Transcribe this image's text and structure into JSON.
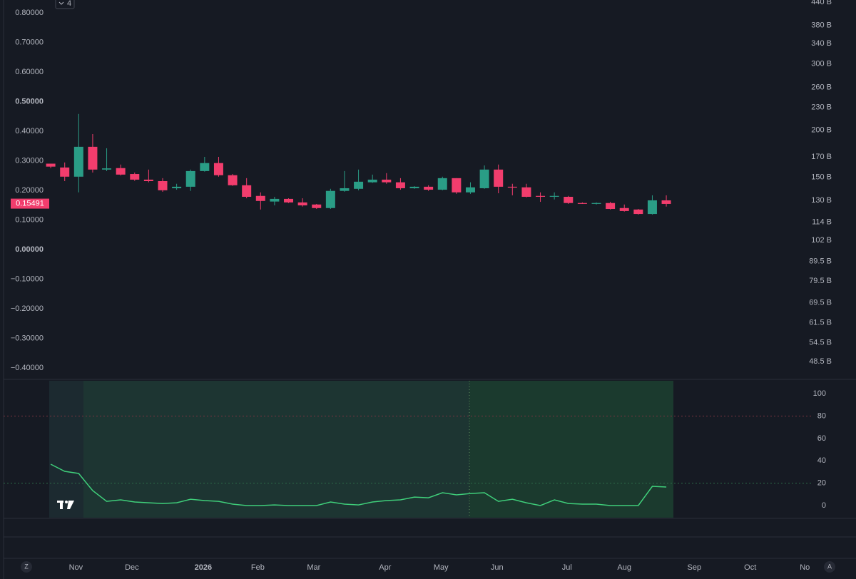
{
  "chart_data": [
    {
      "type": "candlestick",
      "categories": [
        null,
        null,
        null,
        null,
        null,
        null,
        null,
        null,
        null,
        null,
        null,
        null,
        null,
        null,
        null,
        null,
        null,
        null,
        null,
        null,
        null,
        null,
        null,
        null,
        null,
        null,
        null,
        null,
        null,
        null,
        null,
        null,
        null,
        null,
        null,
        null,
        null,
        null,
        null,
        null,
        null,
        null,
        null,
        null,
        null
      ],
      "open": [
        0.29,
        0.277,
        0.246,
        0.347,
        0.27,
        0.275,
        0.255,
        0.236,
        0.231,
        0.207,
        0.212,
        0.265,
        0.292,
        0.251,
        0.217,
        0.181,
        0.162,
        0.171,
        0.159,
        0.152,
        0.14,
        0.198,
        0.205,
        0.227,
        0.236,
        0.227,
        0.207,
        0.212,
        0.202,
        0.241,
        0.193,
        0.207,
        0.27,
        0.212,
        0.21,
        0.181,
        0.179,
        0.178,
        0.157,
        0.155,
        0.157,
        0.14,
        0.135,
        0.12,
        0.166
      ],
      "high": [
        0.29,
        0.294,
        0.458,
        0.39,
        0.342,
        0.287,
        0.26,
        0.27,
        0.241,
        0.222,
        0.27,
        0.313,
        0.313,
        0.255,
        0.241,
        0.193,
        0.178,
        0.173,
        0.173,
        0.154,
        0.205,
        0.265,
        0.27,
        0.253,
        0.258,
        0.241,
        0.214,
        0.217,
        0.246,
        0.241,
        0.227,
        0.284,
        0.287,
        0.222,
        0.222,
        0.193,
        0.193,
        0.181,
        0.159,
        0.159,
        0.161,
        0.152,
        0.137,
        0.183,
        0.183
      ],
      "low": [
        0.275,
        0.231,
        0.193,
        0.26,
        0.265,
        0.25,
        0.232,
        0.227,
        0.195,
        0.202,
        0.198,
        0.263,
        0.246,
        0.215,
        0.173,
        0.135,
        0.149,
        0.157,
        0.145,
        0.137,
        0.137,
        0.195,
        0.2,
        0.225,
        0.222,
        0.202,
        0.205,
        0.198,
        0.2,
        0.188,
        0.188,
        0.205,
        0.19,
        0.183,
        0.176,
        0.161,
        0.169,
        0.154,
        0.154,
        0.152,
        0.135,
        0.128,
        0.118,
        0.118,
        0.145
      ],
      "close": [
        0.28,
        0.246,
        0.347,
        0.27,
        0.274,
        0.253,
        0.236,
        0.231,
        0.2,
        0.212,
        0.265,
        0.292,
        0.251,
        0.217,
        0.178,
        0.164,
        0.171,
        0.159,
        0.149,
        0.14,
        0.198,
        0.207,
        0.229,
        0.236,
        0.227,
        0.207,
        0.212,
        0.202,
        0.241,
        0.193,
        0.21,
        0.27,
        0.212,
        0.21,
        0.178,
        0.179,
        0.181,
        0.157,
        0.155,
        0.157,
        0.137,
        0.13,
        0.12,
        0.166,
        0.154
      ],
      "up_color": "#2a9d86",
      "down_color": "#f23d6d",
      "last_price": 0.15491,
      "xlim": [
        -3.37,
        54.5
      ],
      "xticks": [
        {
          "value": 1.8,
          "label": "Nov"
        },
        {
          "value": 5.8,
          "label": "Dec"
        },
        {
          "value": 10.9,
          "label": "2026"
        },
        {
          "value": 14.8,
          "label": "Feb"
        },
        {
          "value": 18.8,
          "label": "Mar"
        },
        {
          "value": 23.9,
          "label": "Apr"
        },
        {
          "value": 27.9,
          "label": "May"
        },
        {
          "value": 31.9,
          "label": "Jun"
        },
        {
          "value": 36.9,
          "label": "Jul"
        },
        {
          "value": 41,
          "label": "Aug"
        },
        {
          "value": 46,
          "label": "Sep"
        },
        {
          "value": 50,
          "label": "Oct"
        },
        {
          "value": 53.9,
          "label": "No"
        }
      ],
      "ylim": [
        -0.434,
        0.843
      ],
      "yticks": [
        {
          "value": 0.8,
          "label": "0.80000"
        },
        {
          "value": 0.7,
          "label": "0.70000"
        },
        {
          "value": 0.6,
          "label": "0.60000"
        },
        {
          "value": 0.5,
          "label": "0.50000"
        },
        {
          "value": 0.4,
          "label": "0.40000"
        },
        {
          "value": 0.3,
          "label": "0.30000"
        },
        {
          "value": 0.2,
          "label": "0.20000"
        },
        {
          "value": 0.1,
          "label": "0.10000"
        },
        {
          "value": 0,
          "label": "0.00000"
        },
        {
          "value": -0.1,
          "label": "−0.10000"
        },
        {
          "value": -0.2,
          "label": "−0.20000"
        },
        {
          "value": -0.3,
          "label": "−0.30000"
        },
        {
          "value": -0.4,
          "label": "−0.40000"
        }
      ],
      "y2_log": true,
      "y2lim": [
        43.9,
        444
      ],
      "y2ticks": [
        {
          "value": 440,
          "label": "440 B"
        },
        {
          "value": 380,
          "label": "380 B"
        },
        {
          "value": 340,
          "label": "340 B"
        },
        {
          "value": 300,
          "label": "300 B"
        },
        {
          "value": 260,
          "label": "260 B"
        },
        {
          "value": 230,
          "label": "230 B"
        },
        {
          "value": 200,
          "label": "200 B"
        },
        {
          "value": 170,
          "label": "170 B"
        },
        {
          "value": 150,
          "label": "150 B"
        },
        {
          "value": 130,
          "label": "130 B"
        },
        {
          "value": 114,
          "label": "114 B"
        },
        {
          "value": 102,
          "label": "102 B"
        },
        {
          "value": 89.5,
          "label": "89.5 B"
        },
        {
          "value": 79.5,
          "label": "79.5 B"
        },
        {
          "value": 69.5,
          "label": "69.5 B"
        },
        {
          "value": 61.5,
          "label": "61.5 B"
        },
        {
          "value": 54.5,
          "label": "54.5 B"
        },
        {
          "value": 48.5,
          "label": "48.5 B"
        }
      ]
    },
    {
      "type": "line",
      "values": [
        37,
        30.6,
        28.7,
        13.4,
        3.8,
        5.1,
        3.2,
        2.5,
        1.9,
        2.5,
        5.7,
        4.5,
        3.8,
        1.3,
        0,
        0,
        0.6,
        0,
        0,
        0,
        3.2,
        1.3,
        0.6,
        3.2,
        4.5,
        5.1,
        7.6,
        7,
        11.5,
        9.6,
        10.8,
        11.5,
        3.8,
        5.7,
        2.5,
        0,
        5.1,
        1.9,
        1.3,
        1.3,
        0,
        0,
        0,
        17.2,
        16.6
      ],
      "color": "#3fce7a",
      "ylim": [
        -10.8,
        111.5
      ],
      "yticks": [
        0,
        20,
        40,
        60,
        80,
        100
      ],
      "levels": [
        80,
        20
      ],
      "level_colors": [
        "#7a3340",
        "#2e6b4a"
      ]
    }
  ],
  "ui": {
    "badge": "4",
    "buttons": [
      "Z",
      "A"
    ]
  }
}
